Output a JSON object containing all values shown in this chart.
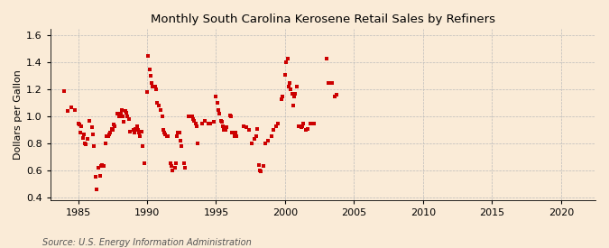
{
  "title": "Monthly South Carolina Kerosene Retail Sales by Refiners",
  "ylabel": "Dollars per Gallon",
  "source": "Source: U.S. Energy Information Administration",
  "background_color": "#faebd7",
  "plot_bg_color": "#faebd7",
  "marker_color": "#cc0000",
  "xlim": [
    1983.0,
    2022.5
  ],
  "ylim": [
    0.38,
    1.65
  ],
  "xticks": [
    1985,
    1990,
    1995,
    2000,
    2005,
    2010,
    2015,
    2020
  ],
  "yticks": [
    0.4,
    0.6,
    0.8,
    1.0,
    1.2,
    1.4,
    1.6
  ],
  "data": [
    [
      1984.0,
      1.19
    ],
    [
      1984.25,
      1.04
    ],
    [
      1984.5,
      1.07
    ],
    [
      1984.75,
      1.05
    ],
    [
      1985.0,
      0.95
    ],
    [
      1985.08,
      0.94
    ],
    [
      1985.17,
      0.88
    ],
    [
      1985.25,
      0.93
    ],
    [
      1985.33,
      0.84
    ],
    [
      1985.42,
      0.87
    ],
    [
      1985.5,
      0.8
    ],
    [
      1985.58,
      0.79
    ],
    [
      1985.67,
      0.83
    ],
    [
      1985.83,
      0.97
    ],
    [
      1986.0,
      0.92
    ],
    [
      1986.08,
      0.87
    ],
    [
      1986.17,
      0.78
    ],
    [
      1986.25,
      0.55
    ],
    [
      1986.33,
      0.46
    ],
    [
      1986.5,
      0.62
    ],
    [
      1986.58,
      0.56
    ],
    [
      1986.67,
      0.63
    ],
    [
      1986.75,
      0.64
    ],
    [
      1986.83,
      0.63
    ],
    [
      1987.0,
      0.8
    ],
    [
      1987.08,
      0.85
    ],
    [
      1987.17,
      0.85
    ],
    [
      1987.25,
      0.87
    ],
    [
      1987.33,
      0.88
    ],
    [
      1987.42,
      0.91
    ],
    [
      1987.5,
      0.9
    ],
    [
      1987.58,
      0.94
    ],
    [
      1987.67,
      0.93
    ],
    [
      1987.83,
      1.02
    ],
    [
      1988.0,
      1.0
    ],
    [
      1988.08,
      1.02
    ],
    [
      1988.17,
      1.05
    ],
    [
      1988.25,
      1.0
    ],
    [
      1988.33,
      0.96
    ],
    [
      1988.42,
      1.04
    ],
    [
      1988.5,
      1.03
    ],
    [
      1988.58,
      1.0
    ],
    [
      1988.67,
      0.98
    ],
    [
      1988.75,
      0.89
    ],
    [
      1989.0,
      0.9
    ],
    [
      1989.08,
      0.88
    ],
    [
      1989.17,
      0.91
    ],
    [
      1989.25,
      0.93
    ],
    [
      1989.33,
      0.9
    ],
    [
      1989.42,
      0.88
    ],
    [
      1989.5,
      0.85
    ],
    [
      1989.58,
      0.89
    ],
    [
      1989.67,
      0.78
    ],
    [
      1989.83,
      0.65
    ],
    [
      1990.0,
      1.18
    ],
    [
      1990.08,
      1.45
    ],
    [
      1990.17,
      1.35
    ],
    [
      1990.25,
      1.3
    ],
    [
      1990.33,
      1.25
    ],
    [
      1990.42,
      1.22
    ],
    [
      1990.5,
      1.22
    ],
    [
      1990.58,
      1.22
    ],
    [
      1990.67,
      1.2
    ],
    [
      1990.75,
      1.1
    ],
    [
      1990.83,
      1.08
    ],
    [
      1991.0,
      1.05
    ],
    [
      1991.08,
      1.0
    ],
    [
      1991.17,
      0.9
    ],
    [
      1991.25,
      0.88
    ],
    [
      1991.33,
      0.87
    ],
    [
      1991.42,
      0.85
    ],
    [
      1991.5,
      0.85
    ],
    [
      1991.67,
      0.65
    ],
    [
      1991.75,
      0.63
    ],
    [
      1991.83,
      0.6
    ],
    [
      1992.0,
      0.62
    ],
    [
      1992.08,
      0.65
    ],
    [
      1992.17,
      0.85
    ],
    [
      1992.25,
      0.88
    ],
    [
      1992.33,
      0.88
    ],
    [
      1992.42,
      0.82
    ],
    [
      1992.5,
      0.78
    ],
    [
      1992.67,
      0.65
    ],
    [
      1992.75,
      0.62
    ],
    [
      1993.0,
      1.0
    ],
    [
      1993.08,
      1.0
    ],
    [
      1993.17,
      1.0
    ],
    [
      1993.25,
      1.0
    ],
    [
      1993.33,
      0.98
    ],
    [
      1993.42,
      0.97
    ],
    [
      1993.5,
      0.95
    ],
    [
      1993.58,
      0.93
    ],
    [
      1993.67,
      0.8
    ],
    [
      1994.0,
      0.95
    ],
    [
      1994.17,
      0.97
    ],
    [
      1994.42,
      0.95
    ],
    [
      1994.58,
      0.95
    ],
    [
      1994.83,
      0.96
    ],
    [
      1995.0,
      1.15
    ],
    [
      1995.08,
      1.1
    ],
    [
      1995.17,
      1.05
    ],
    [
      1995.25,
      1.02
    ],
    [
      1995.33,
      0.97
    ],
    [
      1995.42,
      0.96
    ],
    [
      1995.5,
      0.93
    ],
    [
      1995.58,
      0.9
    ],
    [
      1995.67,
      0.9
    ],
    [
      1995.75,
      0.92
    ],
    [
      1996.0,
      1.01
    ],
    [
      1996.08,
      1.0
    ],
    [
      1996.17,
      0.88
    ],
    [
      1996.25,
      0.88
    ],
    [
      1996.33,
      0.85
    ],
    [
      1996.42,
      0.88
    ],
    [
      1996.5,
      0.85
    ],
    [
      1997.0,
      0.93
    ],
    [
      1997.17,
      0.92
    ],
    [
      1997.42,
      0.9
    ],
    [
      1997.58,
      0.8
    ],
    [
      1997.75,
      0.83
    ],
    [
      1997.92,
      0.85
    ],
    [
      1998.0,
      0.91
    ],
    [
      1998.08,
      0.64
    ],
    [
      1998.17,
      0.6
    ],
    [
      1998.25,
      0.59
    ],
    [
      1998.42,
      0.63
    ],
    [
      1998.58,
      0.8
    ],
    [
      1998.75,
      0.82
    ],
    [
      1999.0,
      0.85
    ],
    [
      1999.17,
      0.9
    ],
    [
      1999.33,
      0.93
    ],
    [
      1999.5,
      0.95
    ],
    [
      1999.75,
      1.13
    ],
    [
      1999.83,
      1.15
    ],
    [
      2000.0,
      1.31
    ],
    [
      2000.08,
      1.4
    ],
    [
      2000.17,
      1.43
    ],
    [
      2000.25,
      1.22
    ],
    [
      2000.33,
      1.25
    ],
    [
      2000.42,
      1.2
    ],
    [
      2000.5,
      1.17
    ],
    [
      2000.58,
      1.08
    ],
    [
      2000.67,
      1.15
    ],
    [
      2000.75,
      1.17
    ],
    [
      2000.83,
      1.22
    ],
    [
      2001.0,
      0.93
    ],
    [
      2001.08,
      0.93
    ],
    [
      2001.17,
      0.92
    ],
    [
      2001.25,
      0.93
    ],
    [
      2001.33,
      0.95
    ],
    [
      2001.5,
      0.9
    ],
    [
      2001.67,
      0.91
    ],
    [
      2001.83,
      0.95
    ],
    [
      2002.0,
      0.95
    ],
    [
      2002.08,
      0.95
    ],
    [
      2003.0,
      1.43
    ],
    [
      2003.17,
      1.25
    ],
    [
      2003.42,
      1.25
    ],
    [
      2003.58,
      1.15
    ],
    [
      2003.75,
      1.16
    ]
  ]
}
